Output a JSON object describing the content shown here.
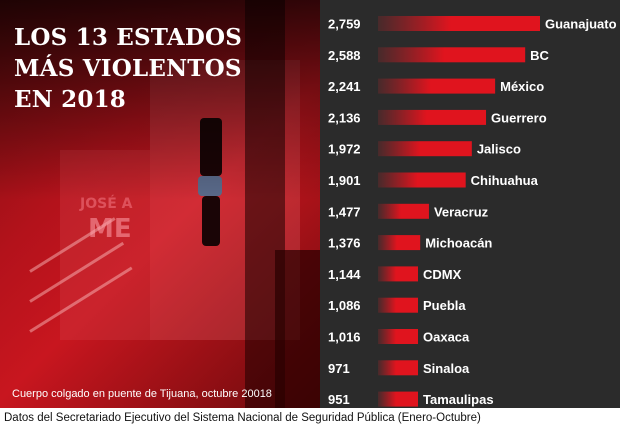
{
  "headline": {
    "line1": "LOS 13 ESTADOS",
    "line2": "MÁS VIOLENTOS",
    "line3": "EN 2018"
  },
  "photo": {
    "caption": "Cuerpo colgado en puente de Tijuana, octubre 20018",
    "wall_text_1": "JOSÉ A",
    "wall_text_2": "ME"
  },
  "source": "Datos del Secretariado Ejecutivo del Sistema Nacional de Seguridad Pública (Enero-Octubre)",
  "colors": {
    "bar": "#e0141e",
    "bar_fade": "#4a2a2b",
    "chart_bg": "#2b2b2b",
    "text": "#ffffff"
  },
  "chart_data": {
    "type": "bar",
    "orientation": "horizontal",
    "categories": [
      "Guanajuato",
      "BC",
      "México",
      "Guerrero",
      "Jalisco",
      "Chihuahua",
      "Veracruz",
      "Michoacán",
      "CDMX",
      "Puebla",
      "Oaxaca",
      "Sinaloa",
      "Tamaulipas"
    ],
    "values": [
      2759,
      2588,
      2241,
      2136,
      1972,
      1901,
      1477,
      1376,
      1144,
      1086,
      1016,
      971,
      951
    ],
    "value_labels": [
      "2,759",
      "2,588",
      "2,241",
      "2,136",
      "1,972",
      "1,901",
      "1,477",
      "1,376",
      "1,144",
      "1,086",
      "1,016",
      "971",
      "951"
    ],
    "title": "",
    "xlabel": "",
    "ylabel": "",
    "grid": false,
    "legend": "none"
  }
}
